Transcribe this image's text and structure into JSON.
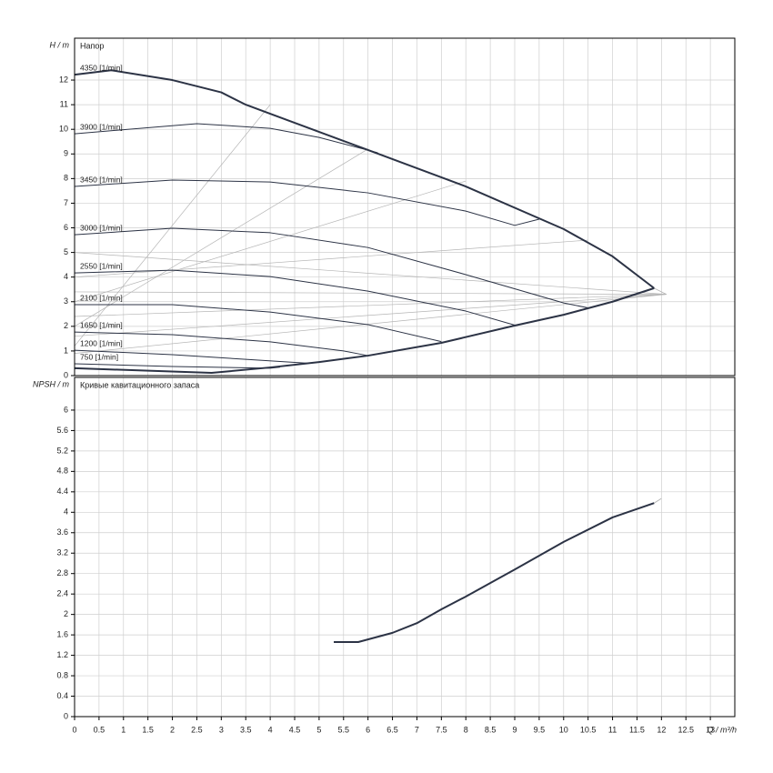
{
  "chart_data": [
    {
      "type": "line",
      "title": "Напор",
      "y_label": "H / m",
      "xlim": [
        0,
        13.5
      ],
      "ylim": [
        0,
        13.7
      ],
      "xticks": [
        0,
        0.5,
        1,
        1.5,
        2,
        2.5,
        3,
        3.5,
        4,
        4.5,
        5,
        5.5,
        6,
        6.5,
        7,
        7.5,
        8,
        8.5,
        9,
        9.5,
        10,
        10.5,
        11,
        11.5,
        12,
        12.5,
        13
      ],
      "yticks": [
        0,
        1,
        2,
        3,
        4,
        5,
        6,
        7,
        8,
        9,
        10,
        11,
        12
      ],
      "grid": true,
      "series": [
        {
          "color": "#b5b5b5",
          "width": 0.7,
          "x": [
            0,
            4
          ],
          "values": [
            1.2,
            11
          ]
        },
        {
          "color": "#b5b5b5",
          "width": 0.7,
          "x": [
            0,
            6
          ],
          "values": [
            2.0,
            9.2
          ]
        },
        {
          "color": "#b5b5b5",
          "width": 0.7,
          "x": [
            0,
            8
          ],
          "values": [
            3.0,
            7.9
          ]
        },
        {
          "color": "#b5b5b5",
          "width": 0.7,
          "x": [
            0,
            10.5
          ],
          "values": [
            4.0,
            5.5
          ]
        },
        {
          "color": "#b5b5b5",
          "width": 0.7,
          "x": [
            0,
            12.1
          ],
          "values": [
            5.0,
            3.3
          ]
        },
        {
          "color": "#b5b5b5",
          "width": 0.7,
          "x": [
            0,
            12.1
          ],
          "values": [
            3.4,
            3.3
          ]
        },
        {
          "color": "#b5b5b5",
          "width": 0.7,
          "x": [
            0,
            12.1
          ],
          "values": [
            2.4,
            3.3
          ]
        },
        {
          "color": "#b5b5b5",
          "width": 0.7,
          "x": [
            0,
            12.1
          ],
          "values": [
            1.6,
            3.3
          ]
        },
        {
          "color": "#b5b5b5",
          "width": 0.7,
          "x": [
            0,
            12.1
          ],
          "values": [
            0.9,
            3.3
          ]
        },
        {
          "color": "#b5b5b5",
          "width": 0.9,
          "x": [
            11.85,
            12.1
          ],
          "values": [
            3.55,
            3.3
          ]
        },
        {
          "name": "750 [1/min]",
          "color": "#2c3345",
          "width": 1,
          "x": [
            0,
            2,
            4,
            4.2
          ],
          "values": [
            0.48,
            0.37,
            0.3,
            0.34
          ]
        },
        {
          "name": "1200 [1/min]",
          "color": "#2c3345",
          "width": 1,
          "x": [
            0,
            2,
            3.5,
            4.8
          ],
          "values": [
            1.03,
            0.85,
            0.66,
            0.5
          ]
        },
        {
          "name": "1650 [1/min]",
          "color": "#2c3345",
          "width": 1,
          "x": [
            0,
            2,
            4,
            5.5,
            6
          ],
          "values": [
            1.77,
            1.66,
            1.37,
            1.0,
            0.81
          ]
        },
        {
          "name": "2100 [1/min]",
          "color": "#2c3345",
          "width": 1,
          "x": [
            0,
            2,
            4,
            6,
            7.5
          ],
          "values": [
            2.88,
            2.88,
            2.58,
            2.07,
            1.38
          ]
        },
        {
          "name": "2550 [1/min]",
          "color": "#2c3345",
          "width": 1,
          "x": [
            0,
            2,
            4,
            6,
            8,
            9
          ],
          "values": [
            4.17,
            4.28,
            4.02,
            3.43,
            2.62,
            2.05
          ]
        },
        {
          "name": "3000 [1/min]",
          "color": "#2c3345",
          "width": 1,
          "x": [
            0,
            2,
            4,
            6,
            8,
            10,
            10.5
          ],
          "values": [
            5.72,
            5.98,
            5.8,
            5.2,
            4.1,
            2.95,
            2.75
          ]
        },
        {
          "name": "3450 [1/min]",
          "color": "#2c3345",
          "width": 1,
          "x": [
            0,
            2,
            4,
            6,
            8,
            9,
            9.5
          ],
          "values": [
            7.68,
            7.94,
            7.86,
            7.42,
            6.68,
            6.1,
            6.35
          ]
        },
        {
          "name": "3900 [1/min]",
          "color": "#2c3345",
          "width": 1,
          "x": [
            0,
            2.5,
            4,
            5,
            6.2
          ],
          "values": [
            9.82,
            10.23,
            10.04,
            9.67,
            9.05
          ]
        },
        {
          "name": "4350 [1/min]",
          "color": "#2c3345",
          "width": 2,
          "x": [
            0,
            0.75,
            2,
            3,
            3.5,
            6,
            8,
            10,
            11,
            11.85
          ],
          "values": [
            12.22,
            12.4,
            12.0,
            11.5,
            11.0,
            9.16,
            7.68,
            5.95,
            4.84,
            3.55
          ]
        },
        {
          "color": "#2c3345",
          "width": 2,
          "x": [
            0,
            2.8,
            4,
            5,
            6,
            7.5,
            9,
            10,
            11,
            11.85
          ],
          "values": [
            0.3,
            0.11,
            0.33,
            0.55,
            0.81,
            1.33,
            2.03,
            2.47,
            3.0,
            3.55
          ]
        }
      ]
    },
    {
      "type": "line",
      "title": "Кривые кавитационного запаса",
      "y_label": "NPSH / m",
      "x_label": "Q / m³/h",
      "xlim": [
        0,
        13.5
      ],
      "ylim": [
        0,
        6.64
      ],
      "xticks": [
        0,
        0.5,
        1,
        1.5,
        2,
        2.5,
        3,
        3.5,
        4,
        4.5,
        5,
        5.5,
        6,
        6.5,
        7,
        7.5,
        8,
        8.5,
        9,
        9.5,
        10,
        10.5,
        11,
        11.5,
        12,
        12.5,
        13
      ],
      "yticks": [
        0,
        0.4,
        0.8,
        1.2,
        1.6,
        2,
        2.4,
        2.8,
        3.2,
        3.6,
        4,
        4.4,
        4.8,
        5.2,
        5.6,
        6
      ],
      "grid": true,
      "series": [
        {
          "color": "#b5b5b5",
          "width": 1,
          "x": [
            11.85,
            12
          ],
          "values": [
            4.18,
            4.27
          ]
        },
        {
          "color": "#2c3345",
          "width": 2,
          "x": [
            5.3,
            5.8,
            6.5,
            7,
            7.5,
            8,
            9,
            10,
            11,
            11.85
          ],
          "values": [
            1.46,
            1.46,
            1.64,
            1.83,
            2.1,
            2.35,
            2.88,
            3.42,
            3.9,
            4.18
          ]
        }
      ]
    }
  ]
}
